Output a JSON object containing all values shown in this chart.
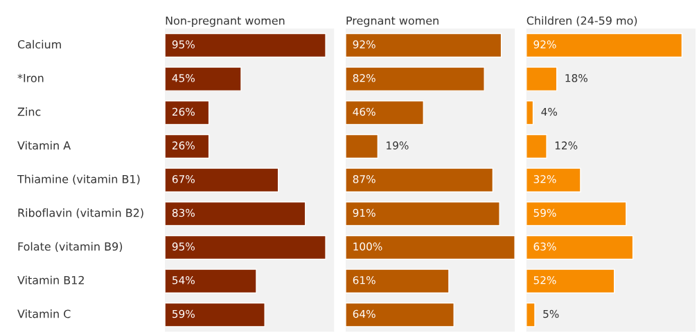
{
  "chart_data": [
    {
      "type": "bar",
      "orientation": "horizontal",
      "title": "Non-pregnant women",
      "categories": [
        "Calcium",
        "*Iron",
        "Zinc",
        "Vitamin A",
        "Thiamine (vitamin B1)",
        "Riboflavin (vitamin B2)",
        "Folate (vitamin B9)",
        "Vitamin B12",
        "Vitamin C"
      ],
      "xlim": [
        0,
        100
      ],
      "tick_labels": "y",
      "series": [
        {
          "color": "#862700",
          "values": [
            95,
            45,
            26,
            26,
            67,
            83,
            95,
            54,
            59
          ],
          "value_labels": [
            "95%",
            "45%",
            "26%",
            "26%",
            "67%",
            "83%",
            "95%",
            "54%",
            "59%"
          ]
        }
      ]
    },
    {
      "type": "bar",
      "orientation": "horizontal",
      "title": "Pregnant women",
      "categories": [
        null,
        null,
        null,
        null,
        null,
        null,
        null,
        null,
        null
      ],
      "xlim": [
        0,
        100
      ],
      "tick_labels": false,
      "series": [
        {
          "color": "#b85a00",
          "values": [
            92,
            82,
            46,
            19,
            87,
            91,
            100,
            61,
            64
          ],
          "value_labels": [
            "92%",
            "82%",
            "46%",
            "19%",
            "87%",
            "91%",
            "100%",
            "61%",
            "64%"
          ]
        }
      ]
    },
    {
      "type": "bar",
      "orientation": "horizontal",
      "title": "Children (24-59 mo)",
      "categories": [
        null,
        null,
        null,
        null,
        null,
        null,
        null,
        null,
        null
      ],
      "xlim": [
        0,
        100
      ],
      "tick_labels": false,
      "series": [
        {
          "color": "#f78c00",
          "values": [
            92,
            18,
            4,
            12,
            32,
            59,
            63,
            52,
            5
          ],
          "value_labels": [
            "92%",
            "18%",
            "4%",
            "12%",
            "32%",
            "59%",
            "63%",
            "52%",
            "5%"
          ]
        }
      ]
    }
  ]
}
